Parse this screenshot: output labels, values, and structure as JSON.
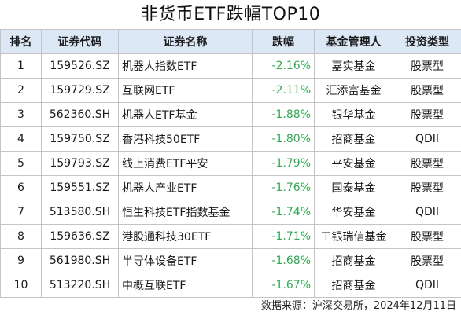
{
  "title": "非货币ETF跌幅TOP10",
  "headers": {
    "rank": "排名",
    "code": "证券代码",
    "name": "证券名称",
    "change": "跌幅",
    "manager": "基金管理人",
    "type": "投资类型"
  },
  "colors": {
    "header_bg": "#dce8f6",
    "change_text": "#34a853",
    "border": "#c4c4c4"
  },
  "rows": [
    {
      "rank": "1",
      "code": "159526.SZ",
      "name": "机器人指数ETF",
      "change": "-2.16%",
      "manager": "嘉实基金",
      "type": "股票型"
    },
    {
      "rank": "2",
      "code": "159729.SZ",
      "name": "互联网ETF",
      "change": "-2.11%",
      "manager": "汇添富基金",
      "type": "股票型"
    },
    {
      "rank": "3",
      "code": "562360.SH",
      "name": "机器人ETF基金",
      "change": "-1.88%",
      "manager": "银华基金",
      "type": "股票型"
    },
    {
      "rank": "4",
      "code": "159750.SZ",
      "name": "香港科技50ETF",
      "change": "-1.80%",
      "manager": "招商基金",
      "type": "QDII"
    },
    {
      "rank": "5",
      "code": "159793.SZ",
      "name": "线上消费ETF平安",
      "change": "-1.79%",
      "manager": "平安基金",
      "type": "股票型"
    },
    {
      "rank": "6",
      "code": "159551.SZ",
      "name": "机器人产业ETF",
      "change": "-1.76%",
      "manager": "国泰基金",
      "type": "股票型"
    },
    {
      "rank": "7",
      "code": "513580.SH",
      "name": "恒生科技ETF指数基金",
      "change": "-1.74%",
      "manager": "华安基金",
      "type": "QDII"
    },
    {
      "rank": "8",
      "code": "159636.SZ",
      "name": "港股通科技30ETF",
      "change": "-1.71%",
      "manager": "工银瑞信基金",
      "type": "股票型"
    },
    {
      "rank": "9",
      "code": "561980.SH",
      "name": "半导体设备ETF",
      "change": "-1.68%",
      "manager": "招商基金",
      "type": "股票型"
    },
    {
      "rank": "10",
      "code": "513220.SH",
      "name": "中概互联ETF",
      "change": "-1.67%",
      "manager": "招商基金",
      "type": "QDII"
    }
  ],
  "source": "数据来源：沪深交易所，2024年12月11日"
}
